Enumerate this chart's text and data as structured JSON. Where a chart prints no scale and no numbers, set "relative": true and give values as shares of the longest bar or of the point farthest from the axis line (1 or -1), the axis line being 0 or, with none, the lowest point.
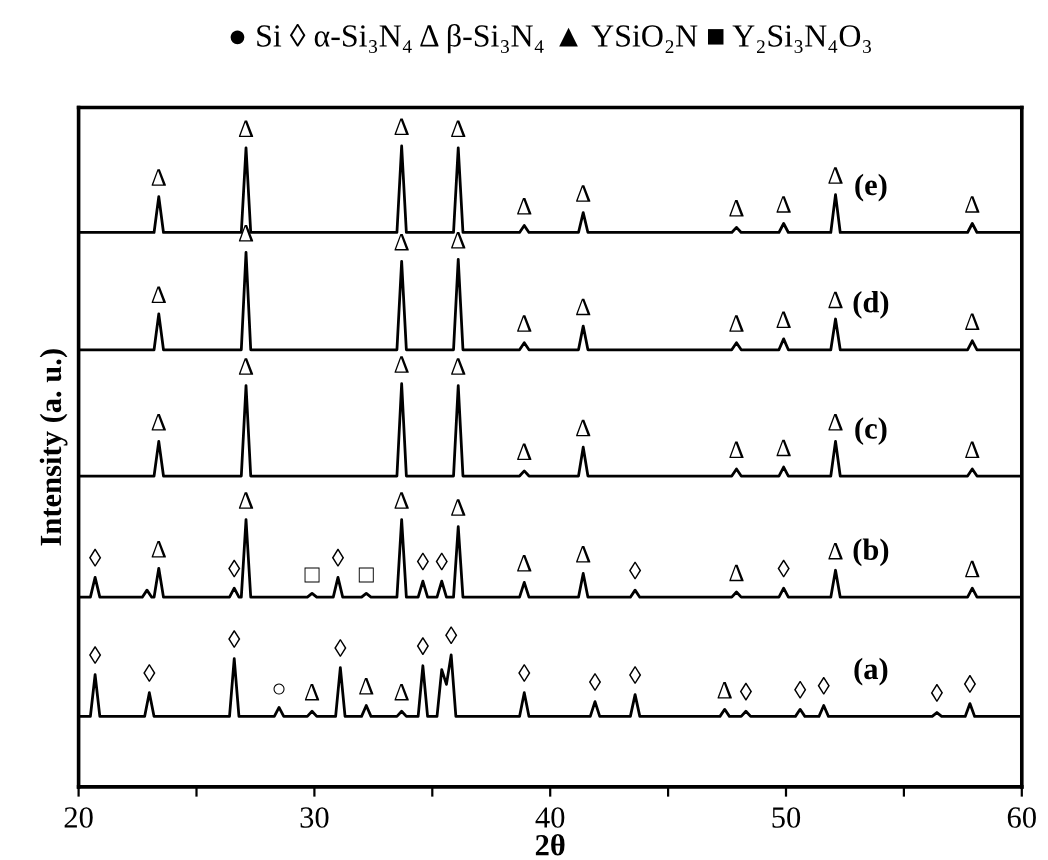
{
  "chart_data": {
    "type": "line",
    "title": "● Si ◊ α-Si₃N₄ Δ β-Si₃N₄ ▲ YSiO₂N ■ Y₂Si₃N₄O₃",
    "xlabel": "2θ",
    "ylabel": "Intensity (a. u.)",
    "relative": true,
    "xlim": [
      20,
      60
    ],
    "xticks": [
      20,
      {
        "value": 25,
        "label": null
      },
      30,
      {
        "value": 35,
        "label": null
      },
      40,
      {
        "value": 45,
        "label": null
      },
      50,
      {
        "value": 55,
        "label": null
      },
      60
    ],
    "tick_labels": "x",
    "grid": false,
    "series": [
      {
        "name": "(e)",
        "color": "#000000",
        "x": [
          20,
          23.2,
          23.4,
          23.6,
          26.9,
          27.1,
          27.3,
          33.5,
          33.7,
          33.9,
          35.9,
          36.1,
          36.3,
          38.7,
          38.9,
          39.1,
          41.2,
          41.4,
          41.6,
          47.7,
          47.9,
          48.1,
          49.7,
          49.9,
          50.1,
          51.9,
          52.1,
          52.3,
          57.7,
          57.9,
          58.1,
          60
        ],
        "values": [
          0.865,
          0.865,
          0.921,
          0.865,
          0.865,
          0.997,
          0.865,
          0.865,
          1.0,
          0.865,
          0.865,
          0.997,
          0.865,
          0.865,
          0.876,
          0.865,
          0.865,
          0.896,
          0.865,
          0.865,
          0.873,
          0.865,
          0.865,
          0.879,
          0.865,
          0.865,
          0.924,
          0.865,
          0.865,
          0.879,
          0.865,
          0.865
        ]
      },
      {
        "name": "(d)",
        "color": "#000000",
        "x": [
          20,
          23.2,
          23.4,
          23.6,
          26.9,
          27.1,
          27.3,
          33.5,
          33.7,
          33.9,
          35.9,
          36.1,
          36.3,
          38.7,
          38.9,
          39.1,
          41.2,
          41.4,
          41.6,
          47.7,
          47.9,
          48.1,
          49.7,
          49.9,
          50.1,
          51.9,
          52.1,
          52.3,
          57.7,
          57.9,
          58.1,
          60
        ],
        "values": [
          0.682,
          0.682,
          0.738,
          0.682,
          0.682,
          0.834,
          0.682,
          0.682,
          0.82,
          0.682,
          0.682,
          0.823,
          0.682,
          0.682,
          0.693,
          0.682,
          0.682,
          0.719,
          0.682,
          0.682,
          0.693,
          0.682,
          0.682,
          0.699,
          0.682,
          0.682,
          0.73,
          0.682,
          0.682,
          0.696,
          0.682,
          0.682
        ]
      },
      {
        "name": "(c)",
        "color": "#000000",
        "x": [
          20,
          23.2,
          23.4,
          23.6,
          26.9,
          27.1,
          27.3,
          33.5,
          33.7,
          33.9,
          35.9,
          36.1,
          36.3,
          38.7,
          38.9,
          39.1,
          41.2,
          41.4,
          41.6,
          47.7,
          47.9,
          48.1,
          49.7,
          49.9,
          50.1,
          51.9,
          52.1,
          52.3,
          57.7,
          57.9,
          58.1,
          60
        ],
        "values": [
          0.485,
          0.485,
          0.539,
          0.485,
          0.485,
          0.626,
          0.485,
          0.485,
          0.629,
          0.485,
          0.485,
          0.626,
          0.485,
          0.485,
          0.493,
          0.485,
          0.485,
          0.53,
          0.485,
          0.485,
          0.496,
          0.485,
          0.485,
          0.499,
          0.485,
          0.485,
          0.539,
          0.485,
          0.485,
          0.496,
          0.485,
          0.485
        ]
      },
      {
        "name": "(b)",
        "color": "#000000",
        "x": [
          20,
          20.5,
          20.7,
          20.9,
          22.7,
          22.9,
          23.1,
          23.2,
          23.4,
          23.6,
          26.4,
          26.6,
          26.8,
          26.9,
          27.1,
          27.3,
          29.7,
          29.9,
          30.1,
          30.8,
          31.0,
          31.2,
          32.0,
          32.2,
          32.4,
          33.5,
          33.7,
          33.9,
          34.4,
          34.6,
          34.8,
          35.2,
          35.4,
          35.6,
          35.9,
          36.1,
          36.3,
          38.7,
          38.9,
          39.1,
          41.2,
          41.4,
          41.6,
          43.4,
          43.6,
          43.8,
          47.7,
          47.9,
          48.1,
          49.7,
          49.9,
          50.1,
          51.9,
          52.1,
          52.3,
          57.7,
          57.9,
          58.1,
          60
        ],
        "values": [
          0.296,
          0.296,
          0.327,
          0.296,
          0.296,
          0.307,
          0.296,
          0.296,
          0.341,
          0.296,
          0.296,
          0.31,
          0.296,
          0.296,
          0.417,
          0.296,
          0.296,
          0.302,
          0.296,
          0.296,
          0.327,
          0.296,
          0.296,
          0.302,
          0.296,
          0.296,
          0.417,
          0.296,
          0.296,
          0.321,
          0.296,
          0.296,
          0.321,
          0.296,
          0.296,
          0.406,
          0.296,
          0.296,
          0.319,
          0.296,
          0.296,
          0.333,
          0.296,
          0.296,
          0.307,
          0.296,
          0.296,
          0.304,
          0.296,
          0.296,
          0.31,
          0.296,
          0.296,
          0.338,
          0.296,
          0.296,
          0.31,
          0.296,
          0.296
        ]
      },
      {
        "name": "(a)",
        "color": "#000000",
        "x": [
          20,
          20.5,
          20.7,
          20.9,
          22.8,
          23.0,
          23.2,
          26.4,
          26.6,
          26.8,
          28.3,
          28.5,
          28.7,
          29.7,
          29.9,
          30.1,
          30.9,
          31.1,
          31.3,
          32.0,
          32.2,
          32.4,
          33.5,
          33.7,
          33.9,
          34.4,
          34.6,
          34.8,
          35.2,
          35.4,
          35.6,
          35.8,
          36.0,
          38.7,
          38.9,
          39.1,
          41.7,
          41.9,
          42.1,
          43.4,
          43.6,
          43.8,
          47.2,
          47.4,
          47.6,
          48.1,
          48.3,
          48.5,
          50.4,
          50.6,
          50.8,
          51.4,
          51.6,
          51.8,
          56.2,
          56.4,
          56.6,
          57.6,
          57.8,
          58.0,
          60
        ],
        "values": [
          0.11,
          0.11,
          0.175,
          0.11,
          0.11,
          0.147,
          0.11,
          0.11,
          0.2,
          0.11,
          0.11,
          0.124,
          0.11,
          0.11,
          0.118,
          0.11,
          0.11,
          0.186,
          0.11,
          0.11,
          0.127,
          0.11,
          0.11,
          0.118,
          0.11,
          0.11,
          0.189,
          0.11,
          0.11,
          0.183,
          0.16,
          0.206,
          0.11,
          0.11,
          0.147,
          0.11,
          0.11,
          0.133,
          0.11,
          0.11,
          0.144,
          0.11,
          0.11,
          0.121,
          0.11,
          0.11,
          0.118,
          0.11,
          0.11,
          0.121,
          0.11,
          0.11,
          0.127,
          0.11,
          0.11,
          0.116,
          0.11,
          0.11,
          0.13,
          0.11,
          0.11
        ]
      }
    ],
    "annotations": [
      {
        "text": "Δ",
        "x": 23.4,
        "y": 0.921
      },
      {
        "text": "Δ",
        "x": 27.1,
        "y": 0.997
      },
      {
        "text": "Δ",
        "x": 33.7,
        "y": 1.0
      },
      {
        "text": "Δ",
        "x": 36.1,
        "y": 0.997
      },
      {
        "text": "Δ",
        "x": 38.9,
        "y": 0.876
      },
      {
        "text": "Δ",
        "x": 41.4,
        "y": 0.896
      },
      {
        "text": "Δ",
        "x": 47.9,
        "y": 0.873
      },
      {
        "text": "Δ",
        "x": 49.9,
        "y": 0.879
      },
      {
        "text": "Δ",
        "x": 52.1,
        "y": 0.924
      },
      {
        "text": "Δ",
        "x": 57.9,
        "y": 0.879
      },
      {
        "text": "Δ",
        "x": 23.4,
        "y": 0.738
      },
      {
        "text": "Δ",
        "x": 27.1,
        "y": 0.834
      },
      {
        "text": "Δ",
        "x": 33.7,
        "y": 0.82
      },
      {
        "text": "Δ",
        "x": 36.1,
        "y": 0.823
      },
      {
        "text": "Δ",
        "x": 38.9,
        "y": 0.693
      },
      {
        "text": "Δ",
        "x": 41.4,
        "y": 0.719
      },
      {
        "text": "Δ",
        "x": 47.9,
        "y": 0.693
      },
      {
        "text": "Δ",
        "x": 49.9,
        "y": 0.699
      },
      {
        "text": "Δ",
        "x": 52.1,
        "y": 0.73
      },
      {
        "text": "Δ",
        "x": 57.9,
        "y": 0.696
      },
      {
        "text": "Δ",
        "x": 23.4,
        "y": 0.539
      },
      {
        "text": "Δ",
        "x": 27.1,
        "y": 0.626
      },
      {
        "text": "Δ",
        "x": 33.7,
        "y": 0.629
      },
      {
        "text": "Δ",
        "x": 36.1,
        "y": 0.626
      },
      {
        "text": "Δ",
        "x": 38.9,
        "y": 0.493
      },
      {
        "text": "Δ",
        "x": 41.4,
        "y": 0.53
      },
      {
        "text": "Δ",
        "x": 47.9,
        "y": 0.496
      },
      {
        "text": "Δ",
        "x": 49.9,
        "y": 0.499
      },
      {
        "text": "Δ",
        "x": 52.1,
        "y": 0.539
      },
      {
        "text": "Δ",
        "x": 57.9,
        "y": 0.496
      },
      {
        "text": "◊",
        "x": 20.7,
        "y": 0.327
      },
      {
        "text": "Δ",
        "x": 23.4,
        "y": 0.341
      },
      {
        "text": "◊",
        "x": 26.6,
        "y": 0.31
      },
      {
        "text": "Δ",
        "x": 27.1,
        "y": 0.417
      },
      {
        "text": "□",
        "x": 29.9,
        "y": 0.302
      },
      {
        "text": "◊",
        "x": 31.0,
        "y": 0.327
      },
      {
        "text": "□",
        "x": 32.2,
        "y": 0.302
      },
      {
        "text": "Δ",
        "x": 33.7,
        "y": 0.417
      },
      {
        "text": "◊",
        "x": 34.6,
        "y": 0.321
      },
      {
        "text": "◊",
        "x": 35.4,
        "y": 0.321
      },
      {
        "text": "Δ",
        "x": 36.1,
        "y": 0.406
      },
      {
        "text": "Δ",
        "x": 38.9,
        "y": 0.319
      },
      {
        "text": "Δ",
        "x": 41.4,
        "y": 0.333
      },
      {
        "text": "◊",
        "x": 43.6,
        "y": 0.307
      },
      {
        "text": "Δ",
        "x": 47.9,
        "y": 0.304
      },
      {
        "text": "◊",
        "x": 49.9,
        "y": 0.31
      },
      {
        "text": "Δ",
        "x": 52.1,
        "y": 0.338
      },
      {
        "text": "Δ",
        "x": 57.9,
        "y": 0.31
      },
      {
        "text": "◊",
        "x": 20.7,
        "y": 0.175
      },
      {
        "text": "◊",
        "x": 23.0,
        "y": 0.147
      },
      {
        "text": "◊",
        "x": 26.6,
        "y": 0.2
      },
      {
        "text": "○",
        "x": 28.5,
        "y": 0.124
      },
      {
        "text": "Δ",
        "x": 29.9,
        "y": 0.118
      },
      {
        "text": "◊",
        "x": 31.1,
        "y": 0.186
      },
      {
        "text": "Δ",
        "x": 32.2,
        "y": 0.127
      },
      {
        "text": "Δ",
        "x": 33.7,
        "y": 0.118
      },
      {
        "text": "◊",
        "x": 34.6,
        "y": 0.189
      },
      {
        "text": "◊",
        "x": 35.8,
        "y": 0.206
      },
      {
        "text": "◊",
        "x": 38.9,
        "y": 0.147
      },
      {
        "text": "◊",
        "x": 41.9,
        "y": 0.133
      },
      {
        "text": "◊",
        "x": 43.6,
        "y": 0.144
      },
      {
        "text": "Δ",
        "x": 47.4,
        "y": 0.121
      },
      {
        "text": "◊",
        "x": 48.3,
        "y": 0.118
      },
      {
        "text": "◊",
        "x": 50.6,
        "y": 0.121
      },
      {
        "text": "◊",
        "x": 51.6,
        "y": 0.127
      },
      {
        "text": "◊",
        "x": 56.4,
        "y": 0.116
      },
      {
        "text": "◊",
        "x": 57.8,
        "y": 0.13
      }
    ]
  }
}
